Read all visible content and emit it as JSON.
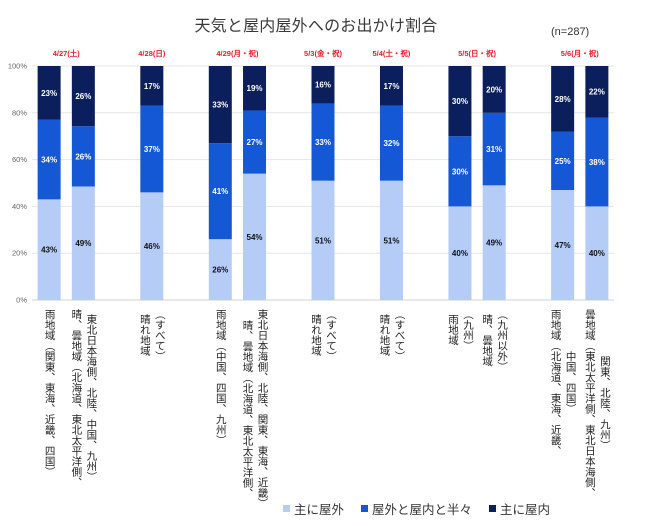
{
  "title": "天気と屋内屋外へのお出かけ割合",
  "sample_size": "(n=287)",
  "chart_data": {
    "type": "bar",
    "stacked": true,
    "percent_stacked": true,
    "title": "天気と屋内屋外へのお出かけ割合",
    "subtitle": "(n=287)",
    "xlabel": "",
    "ylabel": "",
    "ylim": [
      0,
      100
    ],
    "yticks": [
      0,
      20,
      40,
      60,
      80,
      100
    ],
    "ytick_labels": [
      "0%",
      "20%",
      "40%",
      "60%",
      "80%",
      "100%"
    ],
    "grid": true,
    "legend_position": "bottom",
    "date_groups": [
      {
        "label": "4/27(土)",
        "bars": [
          0,
          1
        ]
      },
      {
        "label": "4/28(日)",
        "bars": [
          2
        ]
      },
      {
        "label": "4/29(月・祝)",
        "bars": [
          3,
          4
        ]
      },
      {
        "label": "5/3(金・祝)",
        "bars": [
          5
        ]
      },
      {
        "label": "5/4(土・祝)",
        "bars": [
          6
        ]
      },
      {
        "label": "5/5(日・祝)",
        "bars": [
          7,
          8
        ]
      },
      {
        "label": "5/6(月・祝)",
        "bars": [
          9,
          10
        ]
      }
    ],
    "categories": [
      "雨地域（関東、東海、近畿、四国）",
      "晴、曇地域（北海道、東北太平洋側、\n東北日本海側、北陸、中国、九州）",
      "晴れ地域\n（すべて）",
      "雨地域（中国、四国、九州）",
      "晴、曇地域（北海道、東北太平洋側、\n東北日本海側、北陸、関東、東海、近畿）",
      "晴れ地域\n（すべて）",
      "晴れ地域\n（すべて）",
      "雨地域\n（九州）",
      "晴、曇地域\n（九州以外）",
      "雨地域（北海道、東海、近畿、\n中国、四国）",
      "曇地域（東北太平洋側、東北日本海側、\n関東、北陸、九州）"
    ],
    "series": [
      {
        "name": "主に屋外",
        "color": "#b4ccf6",
        "label_color": "#111111",
        "values": [
          43,
          49,
          46,
          26,
          54,
          51,
          51,
          40,
          49,
          47,
          40
        ],
        "labels": [
          "43%",
          "49%",
          "46%",
          "26%",
          "54%",
          "51%",
          "51%",
          "40%",
          "49%",
          "47%",
          "40%"
        ]
      },
      {
        "name": "屋外と屋内と半々",
        "color": "#1558d6",
        "label_color": "#ffffff",
        "values": [
          34,
          26,
          37,
          41,
          27,
          33,
          32,
          30,
          31,
          25,
          38
        ],
        "labels": [
          "34%",
          "26%",
          "37%",
          "41%",
          "27%",
          "33%",
          "32%",
          "30%",
          "31%",
          "25%",
          "38%"
        ]
      },
      {
        "name": "主に屋内",
        "color": "#0b1f5c",
        "label_color": "#ffffff",
        "values": [
          23,
          26,
          17,
          33,
          19,
          16,
          17,
          30,
          20,
          28,
          22
        ],
        "labels": [
          "23%",
          "26%",
          "17%",
          "33%",
          "19%",
          "16%",
          "17%",
          "30%",
          "20%",
          "28%",
          "22%"
        ]
      }
    ]
  }
}
